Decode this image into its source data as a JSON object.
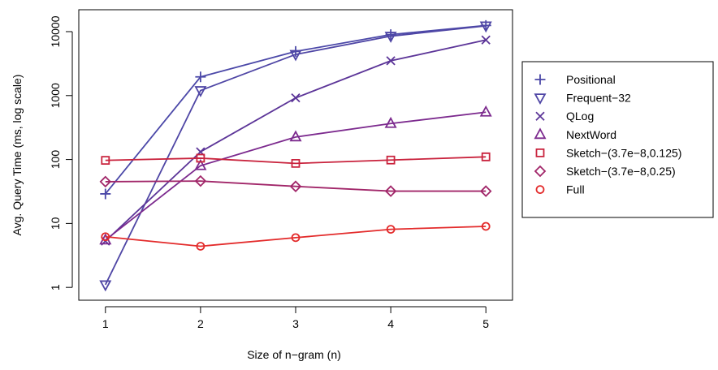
{
  "chart_data": {
    "type": "line",
    "title": "",
    "xlabel": "Size of n−gram (n)",
    "ylabel": "Avg. Query Time (ms, log scale)",
    "x": [
      1,
      2,
      3,
      4,
      5
    ],
    "xlim": [
      0.72,
      5.28
    ],
    "ylim": [
      0.63,
      22000
    ],
    "yscale": "log",
    "x_ticks": [
      "1",
      "2",
      "3",
      "4",
      "5"
    ],
    "y_ticks": [
      {
        "value": 1,
        "label": "1"
      },
      {
        "value": 10,
        "label": "10"
      },
      {
        "value": 100,
        "label": "100"
      },
      {
        "value": 1000,
        "label": "1000"
      },
      {
        "value": 10000,
        "label": "10000"
      }
    ],
    "grid": false,
    "legend_position": "right",
    "series": [
      {
        "name": "Positional",
        "marker": "plus",
        "color": "#4B48A8",
        "values": [
          29,
          1960,
          4900,
          9000,
          12500
        ]
      },
      {
        "name": "Frequent−32",
        "marker": "triangle-down",
        "color": "#4F46A5",
        "values": [
          1.1,
          1200,
          4400,
          8500,
          12300
        ]
      },
      {
        "name": "QLog",
        "marker": "x",
        "color": "#5C3598",
        "values": [
          5.3,
          132,
          920,
          3500,
          7400
        ]
      },
      {
        "name": "NextWord",
        "marker": "triangle-up",
        "color": "#7C2A8E",
        "values": [
          5.5,
          80,
          225,
          365,
          550
        ]
      },
      {
        "name": "Sketch−(3.7e−8,0.125)",
        "marker": "square",
        "color": "#C9233D",
        "values": [
          97,
          105,
          87,
          98,
          110
        ]
      },
      {
        "name": "Sketch−(3.7e−8,0.25)",
        "marker": "diamond",
        "color": "#A12669",
        "values": [
          45,
          46,
          38,
          32,
          32
        ]
      },
      {
        "name": "Full",
        "marker": "circle",
        "color": "#E32B2B",
        "values": [
          6.2,
          4.4,
          6.0,
          8.1,
          9.0
        ]
      }
    ]
  }
}
